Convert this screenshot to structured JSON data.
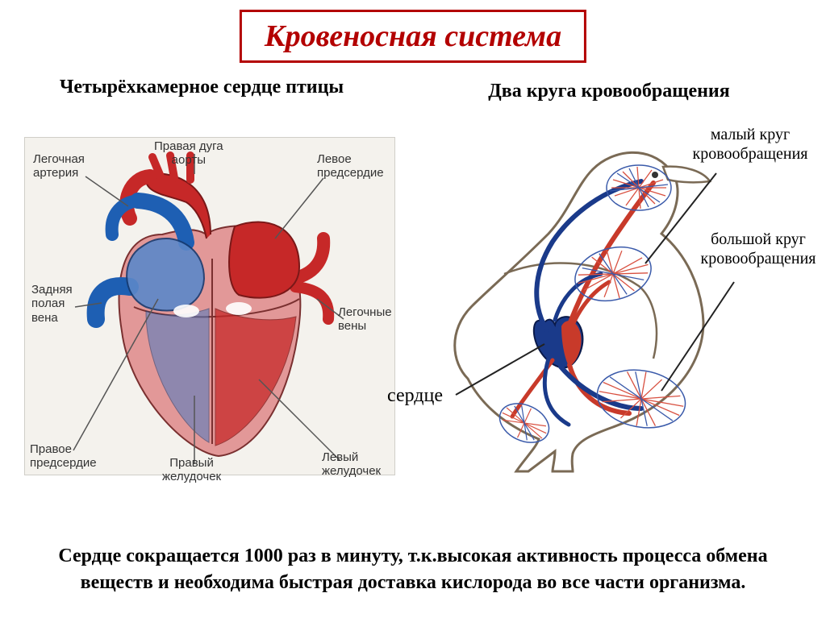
{
  "title": {
    "text": "Кровеносная  система",
    "color": "#b30000",
    "border_color": "#b30000",
    "fontsize": 38
  },
  "subtitles": {
    "left": {
      "text": "Четырёхкамерное сердце птицы",
      "fontsize": 24,
      "color": "#000000"
    },
    "right": {
      "text": "Два круга кровообращения",
      "fontsize": 24,
      "color": "#000000"
    }
  },
  "heart_diagram": {
    "bg_color": "#f4f2ed",
    "labels": {
      "pulmonary_artery": "Легочная\nартерия",
      "right_aortic_arch": "Правая дуга\nаорты",
      "left_atrium": "Левое\nпредсердие",
      "posterior_vena_cava": "Задняя\nполая\nвена",
      "pulmonary_veins": "Легочные\nвены",
      "right_atrium": "Правое\nпредсердие",
      "right_ventricle": "Правый\nжелудочек",
      "left_ventricle": "Левый\nжелудочек"
    },
    "label_fontsize": 15,
    "colors": {
      "oxygenated": "#c62828",
      "deoxygenated": "#1e5fb3",
      "muscle": "#d77a7a",
      "outline": "#5a2020",
      "leader": "#666666"
    }
  },
  "bird_diagram": {
    "labels": {
      "small_circle": "малый круг\nкровообращения",
      "large_circle": "большой круг\nкровообращения",
      "heart": "сердце"
    },
    "label_fontsize": 20,
    "colors": {
      "body_outline": "#7a6a55",
      "body_fill": "#ffffff",
      "artery": "#c83a2a",
      "vein": "#1a3a8a",
      "capillary_red": "#d85040",
      "capillary_blue": "#3a5aaa",
      "leader": "#222222"
    }
  },
  "bottom_text": {
    "text": "Сердце сокращается 1000 раз в минуту, т.к.высокая активность процесса обмена веществ и необходима быстрая доставка кислорода во все части организма.",
    "fontsize": 24,
    "color": "#000000"
  }
}
